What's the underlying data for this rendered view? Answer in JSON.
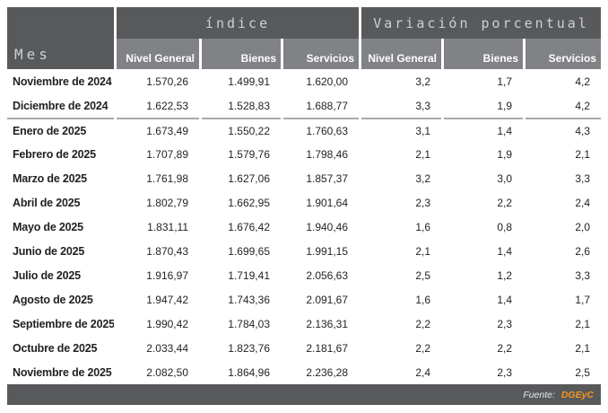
{
  "table": {
    "mes_header": "Mes",
    "groups": [
      {
        "label": "índice"
      },
      {
        "label": "Variación porcentual"
      }
    ],
    "subheaders": [
      "Nivel General",
      "Bienes",
      "Servicios",
      "Nivel General",
      "Bienes",
      "Servicios"
    ],
    "rows": [
      {
        "mes": "Noviembre de 2024",
        "values": [
          "1.570,26",
          "1.499,91",
          "1.620,00",
          "3,2",
          "1,7",
          "4,2"
        ],
        "year_start": false
      },
      {
        "mes": "Diciembre de 2024",
        "values": [
          "1.622,53",
          "1.528,83",
          "1.688,77",
          "3,3",
          "1,9",
          "4,2"
        ],
        "year_start": false
      },
      {
        "mes": "Enero de 2025",
        "values": [
          "1.673,49",
          "1.550,22",
          "1.760,63",
          "3,1",
          "1,4",
          "4,3"
        ],
        "year_start": true
      },
      {
        "mes": "Febrero de 2025",
        "values": [
          "1.707,89",
          "1.579,76",
          "1.798,46",
          "2,1",
          "1,9",
          "2,1"
        ],
        "year_start": false
      },
      {
        "mes": "Marzo de 2025",
        "values": [
          "1.761,98",
          "1.627,06",
          "1.857,37",
          "3,2",
          "3,0",
          "3,3"
        ],
        "year_start": false
      },
      {
        "mes": "Abril de 2025",
        "values": [
          "1.802,79",
          "1.662,95",
          "1.901,64",
          "2,3",
          "2,2",
          "2,4"
        ],
        "year_start": false
      },
      {
        "mes": "Mayo de 2025",
        "values": [
          "1.831,11",
          "1.676,42",
          "1.940,46",
          "1,6",
          "0,8",
          "2,0"
        ],
        "year_start": false
      },
      {
        "mes": "Junio de 2025",
        "values": [
          "1.870,43",
          "1.699,65",
          "1.991,15",
          "2,1",
          "1,4",
          "2,6"
        ],
        "year_start": false
      },
      {
        "mes": "Julio de 2025",
        "values": [
          "1.916,97",
          "1.719,41",
          "2.056,63",
          "2,5",
          "1,2",
          "3,3"
        ],
        "year_start": false
      },
      {
        "mes": "Agosto de 2025",
        "values": [
          "1.947,42",
          "1.743,36",
          "2.091,67",
          "1,6",
          "1,4",
          "1,7"
        ],
        "year_start": false
      },
      {
        "mes": "Septiembre de 2025",
        "values": [
          "1.990,42",
          "1.784,03",
          "2.136,31",
          "2,2",
          "2,3",
          "2,1"
        ],
        "year_start": false
      },
      {
        "mes": "Octubre de 2025",
        "values": [
          "2.033,44",
          "1.823,76",
          "2.181,67",
          "2,2",
          "2,2",
          "2,1"
        ],
        "year_start": false
      },
      {
        "mes": "Noviembre de 2025",
        "values": [
          "2.082,50",
          "1.864,96",
          "2.236,28",
          "2,4",
          "2,3",
          "2,5"
        ],
        "year_start": false
      }
    ],
    "footer": {
      "fuente_label": "Fuente:",
      "source": "DGEyC"
    }
  },
  "colors": {
    "header_dark": "#58595B",
    "header_medium": "#808285",
    "header_text_light": "#CDCFD0",
    "subheader_text": "#FFFFFF",
    "body_text": "#231F20",
    "year_divider": "#A7A9AC",
    "footer_bg": "#58595B",
    "footer_text": "#E8E9EA",
    "source_orange": "#F7941D"
  },
  "chart_data": {
    "type": "table",
    "column_groups": [
      "índice",
      "Variación porcentual"
    ],
    "columns": [
      "Mes",
      "Nivel General (índice)",
      "Bienes (índice)",
      "Servicios (índice)",
      "Nivel General (variación %)",
      "Bienes (variación %)",
      "Servicios (variación %)"
    ],
    "rows": [
      [
        "Noviembre de 2024",
        1570.26,
        1499.91,
        1620.0,
        3.2,
        1.7,
        4.2
      ],
      [
        "Diciembre de 2024",
        1622.53,
        1528.83,
        1688.77,
        3.3,
        1.9,
        4.2
      ],
      [
        "Enero de 2025",
        1673.49,
        1550.22,
        1760.63,
        3.1,
        1.4,
        4.3
      ],
      [
        "Febrero de 2025",
        1707.89,
        1579.76,
        1798.46,
        2.1,
        1.9,
        2.1
      ],
      [
        "Marzo de 2025",
        1761.98,
        1627.06,
        1857.37,
        3.2,
        3.0,
        3.3
      ],
      [
        "Abril de 2025",
        1802.79,
        1662.95,
        1901.64,
        2.3,
        2.2,
        2.4
      ],
      [
        "Mayo de 2025",
        1831.11,
        1676.42,
        1940.46,
        1.6,
        0.8,
        2.0
      ],
      [
        "Junio de 2025",
        1870.43,
        1699.65,
        1991.15,
        2.1,
        1.4,
        2.6
      ],
      [
        "Julio de 2025",
        1916.97,
        1719.41,
        2056.63,
        2.5,
        1.2,
        3.3
      ],
      [
        "Agosto de 2025",
        1947.42,
        1743.36,
        2091.67,
        1.6,
        1.4,
        1.7
      ],
      [
        "Septiembre de 2025",
        1990.42,
        1784.03,
        2136.31,
        2.2,
        2.3,
        2.1
      ],
      [
        "Octubre de 2025",
        2033.44,
        1823.76,
        2181.67,
        2.2,
        2.2,
        2.1
      ],
      [
        "Noviembre de 2025",
        2082.5,
        1864.96,
        2236.28,
        2.4,
        2.3,
        2.5
      ]
    ],
    "source": "DGEyC"
  }
}
